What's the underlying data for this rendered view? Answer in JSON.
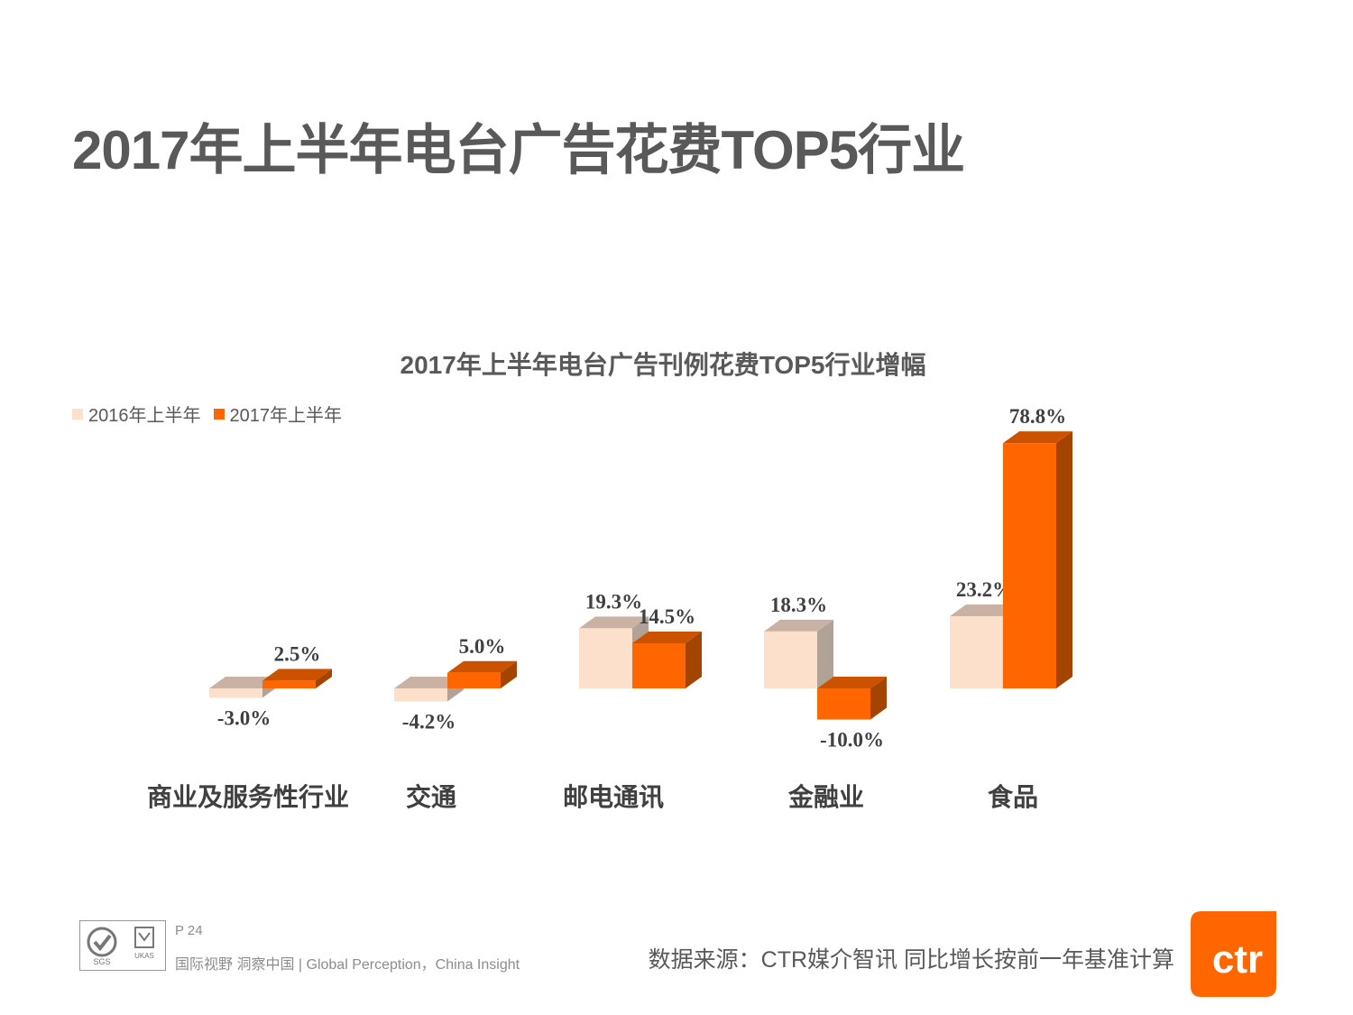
{
  "page": {
    "title": "2017年上半年电台广告花费TOP5行业"
  },
  "chart_data": {
    "type": "bar",
    "title": "2017年上半年电台广告刊例花费TOP5行业增幅",
    "categories": [
      "商业及服务性行业",
      "交通",
      "邮电通讯",
      "金融业",
      "食品"
    ],
    "series": [
      {
        "name": "2016年上半年",
        "values": [
          -3.0,
          -4.2,
          19.3,
          18.3,
          23.2
        ],
        "labels": [
          "-3.0%",
          "-4.2%",
          "19.3%",
          "18.3%",
          "23.2%"
        ],
        "color": "#FDE0CC"
      },
      {
        "name": "2017年上半年",
        "values": [
          2.5,
          5.0,
          14.5,
          -10.0,
          78.8
        ],
        "labels": [
          "2.5%",
          "5.0%",
          "14.5%",
          "-10.0%",
          "78.8%"
        ],
        "color": "#FF6600"
      }
    ],
    "unit": "%",
    "grid": false,
    "legend_position": "top-left",
    "three_d": true
  },
  "footer": {
    "page_number": "P 24",
    "slogan": "国际视野  洞察中国 |  Global Perception，China Insight",
    "source": "数据来源：CTR媒介智讯   同比增长按前一年基准计算",
    "brand": "ctr",
    "brand_color": "#FF6600",
    "cert_label": "SGS",
    "cert_label2": "UKAS"
  }
}
